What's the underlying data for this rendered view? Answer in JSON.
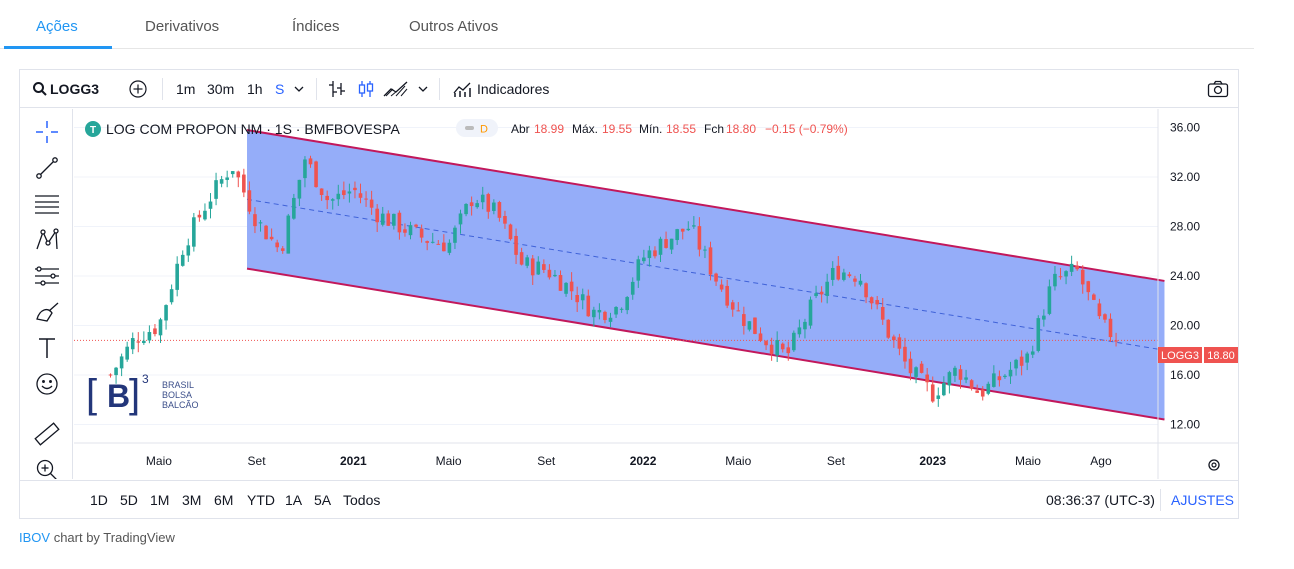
{
  "tabs": [
    {
      "label": "Ações"
    },
    {
      "label": "Derivativos"
    },
    {
      "label": "Índices"
    },
    {
      "label": "Outros Ativos"
    }
  ],
  "toolbar": {
    "symbol": "LOGG3",
    "intervals": [
      "1m",
      "30m",
      "1h",
      "S"
    ],
    "indicators_label": "Indicadores"
  },
  "legend": {
    "title": "LOG COM PROPON NM · 1S · BMFBOVESPA",
    "delay_badge": "D",
    "open_label": "Abr",
    "open": "18.99",
    "high_label": "Máx.",
    "high": "19.55",
    "low_label": "Mín.",
    "low": "18.55",
    "close_label": "Fch",
    "close": "18.80",
    "change": "−0.15 (−0.79%)"
  },
  "watermark": {
    "lines": [
      "BRASIL",
      "BOLSA",
      "BALCÃO"
    ]
  },
  "price_tag": {
    "symbol": "LOGG3",
    "price": "18.80"
  },
  "ranges": [
    "1D",
    "5D",
    "1M",
    "3M",
    "6M",
    "YTD",
    "1A",
    "5A",
    "Todos"
  ],
  "clock": "08:36:37 (UTC-3)",
  "settings_label": "AJUSTES",
  "footer": {
    "link": "IBOV",
    "text": " chart by TradingView"
  },
  "colors": {
    "up": "#26a69a",
    "down": "#ef5350",
    "channel_fill": "#8fa9f9",
    "channel_line": "#c2185b",
    "accent": "#2962ff"
  },
  "chart_data": {
    "type": "candlestick",
    "y_ticks": [
      "36.00",
      "32.00",
      "28.00",
      "24.00",
      "20.00",
      "16.00",
      "12.00"
    ],
    "x_ticks": [
      "Maio",
      "Set",
      "2021",
      "Maio",
      "Set",
      "2022",
      "Maio",
      "Set",
      "2023",
      "Maio",
      "Ago"
    ],
    "ylim": [
      10.5,
      37.5
    ],
    "last_price": 18.8,
    "channel": {
      "start_date": "2020-08",
      "end_date": "2023-10",
      "upper": [
        35.8,
        23.6
      ],
      "lower": [
        24.6,
        12.4
      ],
      "mid": [
        30.2,
        18.0
      ]
    },
    "close_path": [
      [
        "2020-03",
        16.0
      ],
      [
        "2020-04",
        19.0
      ],
      [
        "2020-05",
        20.0
      ],
      [
        "2020-06",
        26.5
      ],
      [
        "2020-07",
        30.0
      ],
      [
        "2020-08",
        33.0
      ],
      [
        "2020-09",
        28.5
      ],
      [
        "2020-10",
        26.0
      ],
      [
        "2020-11",
        33.5
      ],
      [
        "2020-12",
        30.0
      ],
      [
        "2021-01",
        31.0
      ],
      [
        "2021-02",
        29.0
      ],
      [
        "2021-03",
        28.0
      ],
      [
        "2021-04",
        27.0
      ],
      [
        "2021-05",
        26.5
      ],
      [
        "2021-06",
        30.5
      ],
      [
        "2021-07",
        29.0
      ],
      [
        "2021-08",
        25.0
      ],
      [
        "2021-09",
        24.5
      ],
      [
        "2021-10",
        23.0
      ],
      [
        "2021-11",
        21.0
      ],
      [
        "2021-12",
        21.5
      ],
      [
        "2022-01",
        25.5
      ],
      [
        "2022-02",
        27.0
      ],
      [
        "2022-03",
        28.0
      ],
      [
        "2022-04",
        24.0
      ],
      [
        "2022-05",
        21.0
      ],
      [
        "2022-06",
        19.0
      ],
      [
        "2022-07",
        17.5
      ],
      [
        "2022-08",
        21.5
      ],
      [
        "2022-09",
        24.5
      ],
      [
        "2022-10",
        24.0
      ],
      [
        "2022-11",
        20.0
      ],
      [
        "2022-12",
        16.5
      ],
      [
        "2023-01",
        14.5
      ],
      [
        "2023-02",
        16.5
      ],
      [
        "2023-03",
        14.5
      ],
      [
        "2023-04",
        16.0
      ],
      [
        "2023-05",
        17.5
      ],
      [
        "2023-06",
        23.5
      ],
      [
        "2023-07",
        24.5
      ],
      [
        "2023-08",
        20.0
      ],
      [
        "2023-08-25",
        18.8
      ]
    ]
  }
}
